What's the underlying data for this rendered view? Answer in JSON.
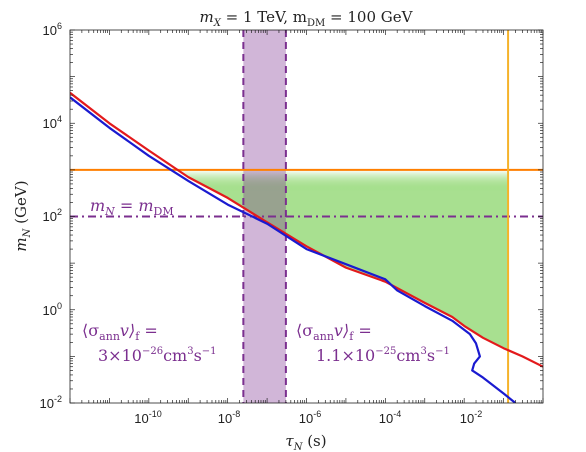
{
  "chart_data": {
    "type": "line",
    "title": "m_X = 1 TeV, m_DM = 100 GeV",
    "title_parts": {
      "a": "m",
      "a_sub": "X",
      "b": " = 1 TeV, m",
      "b_sub": "DM",
      "c": " = 100 GeV"
    },
    "xlabel": {
      "base": "τ",
      "sub": "N",
      "unit": " (s)"
    },
    "ylabel": {
      "base": "m",
      "sub": "N",
      "unit": " (GeV)"
    },
    "x_scale": "log",
    "y_scale": "log",
    "xlim": [
      1e-12,
      1
    ],
    "ylim": [
      0.01,
      1000000
    ],
    "grid": false,
    "x_ticks": [
      {
        "value": 1e-10,
        "base": "10",
        "exp": "-10"
      },
      {
        "value": 1e-08,
        "base": "10",
        "exp": "-8"
      },
      {
        "value": 1e-06,
        "base": "10",
        "exp": "-6"
      },
      {
        "value": 0.0001,
        "base": "10",
        "exp": "-4"
      },
      {
        "value": 0.01,
        "base": "10",
        "exp": "-2"
      }
    ],
    "y_ticks": [
      {
        "value": 0.01,
        "base": "10",
        "exp": "-2"
      },
      {
        "value": 1,
        "base": "10",
        "exp": "0"
      },
      {
        "value": 100,
        "base": "10",
        "exp": "2"
      },
      {
        "value": 10000,
        "base": "10",
        "exp": "4"
      },
      {
        "value": 1000000,
        "base": "10",
        "exp": "6"
      }
    ],
    "series": [
      {
        "color": "#e31a1c",
        "x": [
          1e-12,
          1e-11,
          1e-10,
          1e-09,
          1e-08,
          1e-07,
          1e-06,
          1e-05,
          0.0001,
          0.001,
          0.005,
          0.01,
          0.03,
          0.1,
          0.3,
          1
        ],
        "y": [
          45000,
          10000,
          2600,
          700,
          250,
          75,
          23,
          8,
          4,
          1.4,
          0.7,
          0.45,
          0.25,
          0.15,
          0.1,
          0.06
        ]
      },
      {
        "color": "#1a1ad0",
        "x": [
          1e-12,
          1e-11,
          1e-10,
          1e-09,
          1e-08,
          1e-07,
          1e-06,
          1e-05,
          0.0001,
          0.0002,
          0.001,
          0.005,
          0.014,
          0.02,
          0.025,
          0.018,
          0.016,
          0.03,
          0.1,
          0.2
        ],
        "y": [
          36000,
          8000,
          2000,
          580,
          180,
          70,
          20,
          9.5,
          4.5,
          2.6,
          1.2,
          0.58,
          0.3,
          0.19,
          0.1,
          0.07,
          0.05,
          0.035,
          0.016,
          0.01
        ]
      }
    ],
    "reference_lines": [
      {
        "orientation": "horizontal",
        "value": 1000,
        "color": "#ff7f00",
        "style": "solid"
      },
      {
        "orientation": "horizontal",
        "value": 100,
        "color": "#7b2f8f",
        "style": "dashdot"
      },
      {
        "orientation": "vertical",
        "value": 0.13,
        "color": "#f5b32b",
        "style": "solid"
      },
      {
        "orientation": "vertical",
        "value": 2.5e-08,
        "color": "#7b2f8f",
        "style": "dashed"
      },
      {
        "orientation": "vertical",
        "value": 3e-07,
        "color": "#7b2f8f",
        "style": "dashed"
      }
    ],
    "shaded_regions": [
      {
        "color": "#7b2f8f",
        "opacity": 0.35,
        "x": [
          2.5e-08,
          3e-07
        ]
      },
      {
        "color": "#8bd66b",
        "opacity": 0.75,
        "bounded_by": [
          "horizontal line 1000",
          "vertical line 0.13",
          "red line"
        ]
      }
    ],
    "annotations": {
      "mass_label": {
        "lhs": "m",
        "lhs_sub": "N",
        "eq": " = m",
        "rhs_sub": "DM"
      },
      "left_sigma": {
        "line1": "⟨σ",
        "line1_sub": "ann",
        "line1_tail": "v⟩",
        "line1_sub2": "f",
        "line1_end": " =",
        "line2": "3×10",
        "line2_exp": "−26",
        "line2_unit": "cm",
        "line2_exp2": "3",
        "line2_unit2": "s",
        "line2_exp3": "−1"
      },
      "right_sigma": {
        "line1": "⟨σ",
        "line1_sub": "ann",
        "line1_tail": "v⟩",
        "line1_sub2": "f",
        "line1_end": " =",
        "line2": "1.1×10",
        "line2_exp": "−25",
        "line2_unit": "cm",
        "line2_exp2": "3",
        "line2_unit2": "s",
        "line2_exp3": "−1"
      }
    }
  }
}
